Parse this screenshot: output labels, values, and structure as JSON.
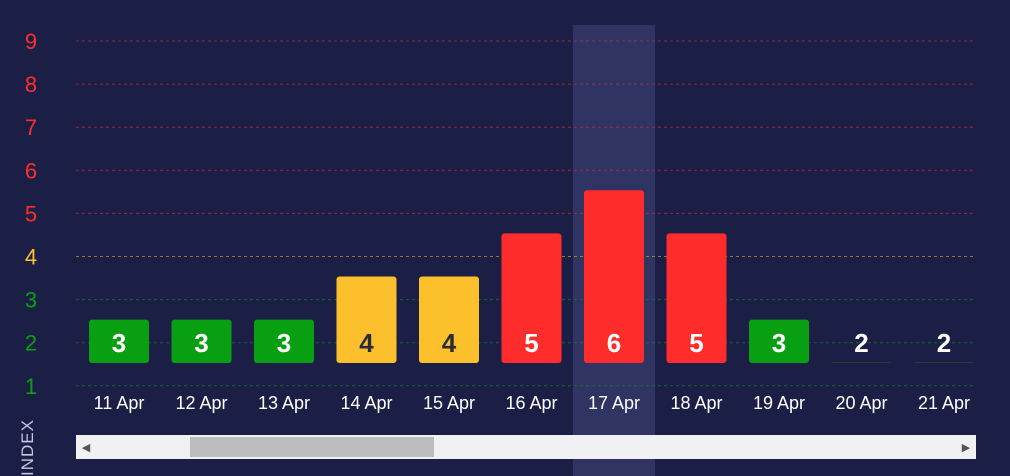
{
  "chart_data": {
    "type": "bar",
    "ylabel": "INDEX",
    "ylim": [
      1,
      9
    ],
    "yticks": [
      1,
      2,
      3,
      4,
      5,
      6,
      7,
      8,
      9
    ],
    "grid": true,
    "categories": [
      "11 Apr",
      "12 Apr",
      "13 Apr",
      "14 Apr",
      "15 Apr",
      "16 Apr",
      "17 Apr",
      "18 Apr",
      "19 Apr",
      "20 Apr",
      "21 Apr"
    ],
    "values": [
      3,
      3,
      3,
      4,
      4,
      5,
      6,
      5,
      3,
      2,
      2
    ],
    "highlighted_category": "17 Apr",
    "colors": {
      "low": "#08a012",
      "moderate": "#fcc02c",
      "high": "#ff2c2c",
      "label_dark": "#2b2b36",
      "label_light": "#ffffff",
      "highlight_band": "#2f3463"
    }
  },
  "scrollbar": {
    "left_arrow": "◀",
    "right_arrow": "▶"
  }
}
